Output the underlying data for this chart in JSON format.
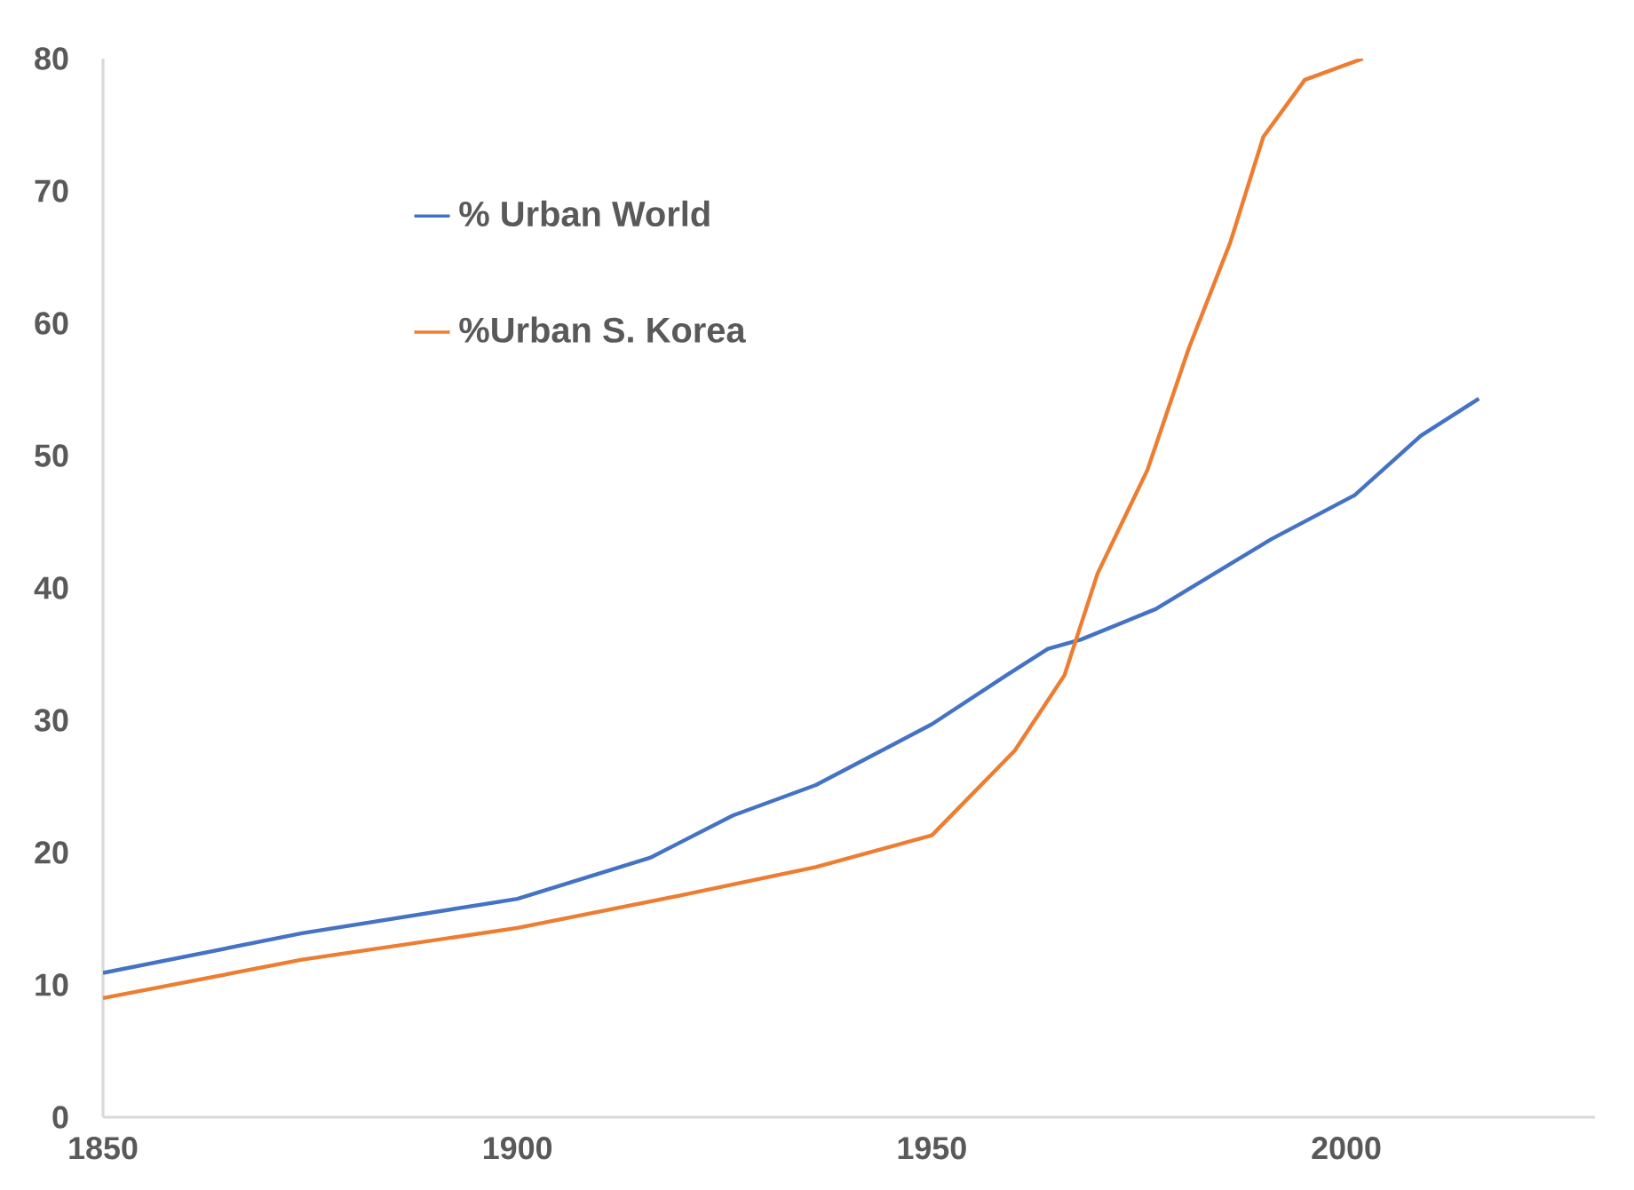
{
  "chart_data": {
    "type": "line",
    "xlim": [
      1850,
      2030
    ],
    "ylim": [
      0,
      80
    ],
    "xticks": [
      1850,
      1900,
      1950,
      2000
    ],
    "yticks": [
      0,
      10,
      20,
      30,
      40,
      50,
      60,
      70,
      80
    ],
    "grid": false,
    "legend": "top left",
    "series": [
      {
        "name": "% Urban World",
        "color": "#4472c4",
        "x": [
          1850,
          1874,
          1900,
          1916,
          1926,
          1936,
          1950,
          1959,
          1964,
          1968,
          1977,
          1982,
          1991,
          2001,
          2009,
          2016
        ],
        "values": [
          10.9,
          13.9,
          16.5,
          19.6,
          22.8,
          25.1,
          29.7,
          33.4,
          35.4,
          36.1,
          38.4,
          40.3,
          43.7,
          47.0,
          51.5,
          54.3
        ]
      },
      {
        "name": "%Urban S. Korea",
        "color": "#ed7d31",
        "x": [
          1850,
          1874,
          1900,
          1920,
          1936,
          1950,
          1960,
          1966,
          1970,
          1976,
          1981,
          1986,
          1990,
          1995,
          2002
        ],
        "values": [
          9.0,
          11.9,
          14.3,
          16.8,
          18.9,
          21.3,
          27.7,
          33.4,
          41.1,
          48.9,
          58.1,
          66.1,
          74.1,
          78.4,
          80.0
        ]
      }
    ]
  }
}
